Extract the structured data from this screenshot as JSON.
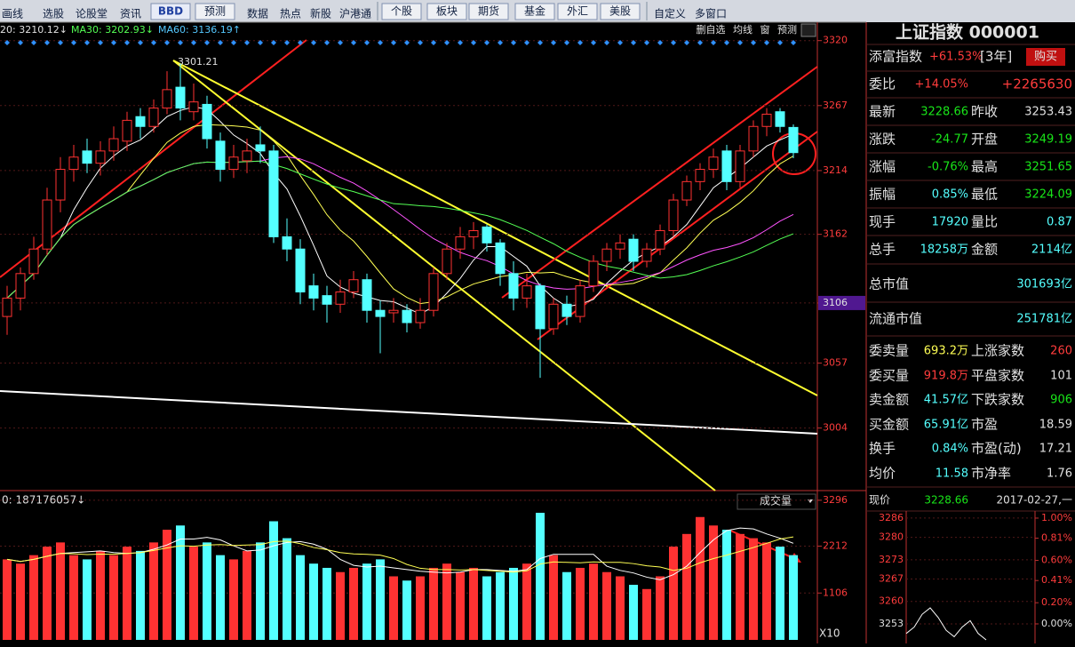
{
  "toolbar": [
    "画线",
    "选股",
    "论股堂",
    "资讯",
    "BBD",
    "预测",
    "数据",
    "热点",
    "新股",
    "沪港通",
    "个股",
    "板块",
    "期货",
    "基金",
    "外汇",
    "美股",
    "自定义",
    "多窗口"
  ],
  "main": {
    "type": "candlestick",
    "ma_legend": [
      "20: 3210.12↓",
      "MA30: 3202.93↓",
      "MA60: 3136.19↑"
    ],
    "tools": [
      "删自选",
      "均线",
      "窗",
      "预测"
    ],
    "annotation": "3301.21",
    "cursor_label": 3106,
    "ylim": [
      2953,
      3335
    ],
    "yticks": [
      3320,
      3267,
      3214,
      3162,
      3106,
      3057,
      3004
    ],
    "candles": [
      [
        3095,
        3120,
        3080,
        3110
      ],
      [
        3110,
        3135,
        3100,
        3130
      ],
      [
        3130,
        3160,
        3125,
        3150
      ],
      [
        3150,
        3200,
        3145,
        3190
      ],
      [
        3190,
        3225,
        3180,
        3215
      ],
      [
        3215,
        3235,
        3205,
        3225
      ],
      [
        3230,
        3240,
        3212,
        3220
      ],
      [
        3220,
        3238,
        3210,
        3230
      ],
      [
        3230,
        3250,
        3222,
        3240
      ],
      [
        3238,
        3262,
        3230,
        3255
      ],
      [
        3258,
        3265,
        3240,
        3250
      ],
      [
        3250,
        3272,
        3245,
        3265
      ],
      [
        3265,
        3295,
        3260,
        3280
      ],
      [
        3282,
        3301.21,
        3255,
        3265
      ],
      [
        3262,
        3285,
        3255,
        3270
      ],
      [
        3268,
        3275,
        3232,
        3240
      ],
      [
        3238,
        3245,
        3205,
        3215
      ],
      [
        3215,
        3235,
        3208,
        3225
      ],
      [
        3222,
        3240,
        3212,
        3230
      ],
      [
        3235,
        3250,
        3220,
        3230
      ],
      [
        3230,
        3235,
        3155,
        3160
      ],
      [
        3160,
        3175,
        3140,
        3150
      ],
      [
        3150,
        3158,
        3105,
        3115
      ],
      [
        3120,
        3130,
        3100,
        3110
      ],
      [
        3112,
        3120,
        3090,
        3105
      ],
      [
        3105,
        3125,
        3098,
        3115
      ],
      [
        3115,
        3132,
        3110,
        3125
      ],
      [
        3125,
        3130,
        3090,
        3100
      ],
      [
        3100,
        3108,
        3065,
        3095
      ],
      [
        3098,
        3110,
        3090,
        3100
      ],
      [
        3100,
        3105,
        3082,
        3090
      ],
      [
        3090,
        3110,
        3085,
        3100
      ],
      [
        3100,
        3135,
        3095,
        3130
      ],
      [
        3130,
        3155,
        3125,
        3150
      ],
      [
        3150,
        3168,
        3142,
        3160
      ],
      [
        3160,
        3172,
        3150,
        3165
      ],
      [
        3168,
        3170,
        3148,
        3155
      ],
      [
        3155,
        3158,
        3120,
        3130
      ],
      [
        3130,
        3140,
        3100,
        3110
      ],
      [
        3110,
        3130,
        3102,
        3120
      ],
      [
        3120,
        3122,
        3045,
        3085
      ],
      [
        3085,
        3110,
        3080,
        3105
      ],
      [
        3105,
        3112,
        3088,
        3095
      ],
      [
        3095,
        3125,
        3090,
        3120
      ],
      [
        3120,
        3145,
        3115,
        3140
      ],
      [
        3140,
        3155,
        3132,
        3150
      ],
      [
        3150,
        3162,
        3142,
        3155
      ],
      [
        3158,
        3162,
        3132,
        3140
      ],
      [
        3140,
        3155,
        3135,
        3150
      ],
      [
        3150,
        3170,
        3145,
        3165
      ],
      [
        3165,
        3195,
        3160,
        3190
      ],
      [
        3190,
        3210,
        3185,
        3205
      ],
      [
        3205,
        3220,
        3198,
        3215
      ],
      [
        3215,
        3232,
        3208,
        3225
      ],
      [
        3230,
        3235,
        3198,
        3205
      ],
      [
        3205,
        3235,
        3200,
        3230
      ],
      [
        3230,
        3255,
        3225,
        3250
      ],
      [
        3250,
        3265,
        3242,
        3260
      ],
      [
        3262,
        3265,
        3245,
        3250
      ],
      [
        3249.19,
        3251.65,
        3224.09,
        3228.66
      ]
    ]
  },
  "volume": {
    "type": "bar",
    "legend": "0: 187176057↓",
    "name": "成交量",
    "unit_label": "X10",
    "ylim": [
      0,
      3524
    ],
    "yticks": [
      3296,
      2212,
      1106
    ],
    "values": [
      1900,
      1800,
      2000,
      2200,
      2300,
      2000,
      1900,
      2100,
      2000,
      2200,
      2100,
      2300,
      2600,
      2700,
      2200,
      2300,
      2000,
      1900,
      2100,
      2300,
      2800,
      2400,
      2000,
      1800,
      1700,
      1600,
      1700,
      1800,
      1900,
      1500,
      1400,
      1500,
      1700,
      1800,
      1600,
      1700,
      1500,
      1600,
      1700,
      1800,
      3000,
      2000,
      1600,
      1700,
      1800,
      1600,
      1500,
      1300,
      1200,
      1500,
      2200,
      2500,
      2900,
      2700,
      2600,
      2500,
      2400,
      2300,
      2200,
      2000
    ]
  },
  "quote": {
    "title": "上证指数 000001",
    "rows": [
      [
        [
          "添富指数",
          "w"
        ],
        [
          "+61.53%",
          "r"
        ],
        [
          "[3年]",
          "w"
        ],
        [
          "购买",
          "w"
        ]
      ],
      [
        [
          "委比",
          "w"
        ],
        [
          "+14.05%",
          "r"
        ],
        [
          "+2265630",
          "r"
        ]
      ],
      [
        [
          "最新",
          "w"
        ],
        [
          "3228.66",
          "g"
        ],
        [
          "昨收",
          "w"
        ],
        [
          "3253.43",
          "w"
        ]
      ],
      [
        [
          "涨跌",
          "w"
        ],
        [
          "-24.77",
          "g"
        ],
        [
          "开盘",
          "w"
        ],
        [
          "3249.19",
          "g"
        ]
      ],
      [
        [
          "涨幅",
          "w"
        ],
        [
          "-0.76%",
          "g"
        ],
        [
          "最高",
          "w"
        ],
        [
          "3251.65",
          "g"
        ]
      ],
      [
        [
          "振幅",
          "w"
        ],
        [
          "0.85%",
          "c"
        ],
        [
          "最低",
          "w"
        ],
        [
          "3224.09",
          "g"
        ]
      ],
      [
        [
          "现手",
          "w"
        ],
        [
          "17920",
          "c"
        ],
        [
          "量比",
          "w"
        ],
        [
          "0.87",
          "c"
        ]
      ],
      [
        [
          "总手",
          "w"
        ],
        [
          "18258万",
          "c"
        ],
        [
          "金额",
          "w"
        ],
        [
          "2114亿",
          "c"
        ]
      ],
      [
        [
          "总市值",
          "w"
        ],
        [
          "301693亿",
          "c"
        ]
      ],
      [
        [
          "流通市值",
          "w"
        ],
        [
          "251781亿",
          "c"
        ]
      ],
      [
        [
          "委卖量",
          "w"
        ],
        [
          "693.2万",
          "y"
        ],
        [
          "上涨家数",
          "w"
        ],
        [
          "260",
          "r"
        ]
      ],
      [
        [
          "委买量",
          "w"
        ],
        [
          "919.8万",
          "r"
        ],
        [
          "平盘家数",
          "w"
        ],
        [
          "101",
          "w"
        ]
      ],
      [
        [
          "卖金额",
          "w"
        ],
        [
          "41.57亿",
          "c"
        ],
        [
          "下跌家数",
          "w"
        ],
        [
          "906",
          "g"
        ]
      ],
      [
        [
          "买金额",
          "w"
        ],
        [
          "65.91亿",
          "c"
        ],
        [
          "市盈",
          "w"
        ],
        [
          "18.59",
          "w"
        ]
      ],
      [
        [
          "换手",
          "w"
        ],
        [
          "0.84%",
          "c"
        ],
        [
          "市盈(动)",
          "w"
        ],
        [
          "17.21",
          "w"
        ]
      ],
      [
        [
          "均价",
          "w"
        ],
        [
          "11.58",
          "c"
        ],
        [
          "市净率",
          "w"
        ],
        [
          "1.76",
          "w"
        ]
      ],
      [
        [
          "现价",
          "w"
        ],
        [
          "3228.66",
          "g"
        ],
        [
          "2017-02-27,一",
          "w"
        ]
      ]
    ]
  },
  "intraday": {
    "type": "line",
    "ylim": [
      3246.9,
      3288.2
    ],
    "yticks": [
      3286,
      3280,
      3273,
      3267,
      3260,
      3253
    ],
    "y2lim": [
      -0.185,
      1.067
    ],
    "y2ticks": [
      {
        "value": 1,
        "label": "1.00%"
      },
      {
        "value": 0.81,
        "label": "0.81%"
      },
      {
        "value": 0.6,
        "label": "0.60%"
      },
      {
        "value": 0.41,
        "label": "0.41%"
      },
      {
        "value": 0.2,
        "label": "0.20%"
      },
      {
        "value": 0,
        "label": "0.00%"
      }
    ],
    "values": [
      3250,
      3252,
      3256,
      3258,
      3255,
      3251,
      3249,
      3252,
      3254,
      3250,
      3248
    ]
  }
}
